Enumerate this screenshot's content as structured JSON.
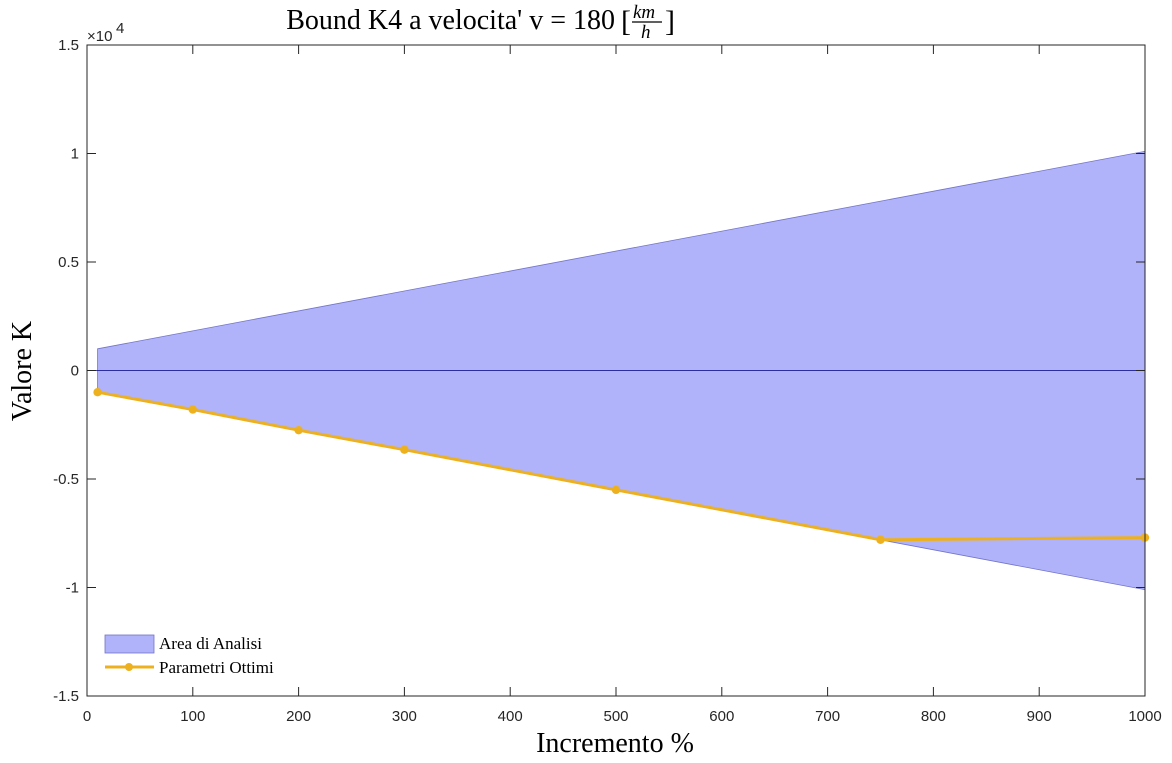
{
  "chart_data": {
    "type": "area",
    "title": "Bound K4 a velocita' v = 180 ",
    "title_unit_num": "km",
    "title_unit_den": "h",
    "xlabel": "Incremento %",
    "ylabel": "Valore K",
    "xlim": [
      0,
      1000
    ],
    "ylim": [
      -15000,
      15000
    ],
    "x_ticks": [
      0,
      100,
      200,
      300,
      400,
      500,
      600,
      700,
      800,
      900,
      1000
    ],
    "y_ticks": [
      -15000,
      -10000,
      -5000,
      0,
      5000,
      10000,
      15000
    ],
    "y_tick_labels": [
      "-1.5",
      "-1",
      "-0.5",
      "0",
      "0.5",
      "1",
      "1.5"
    ],
    "y_exponent_label": "×10",
    "y_exponent_power": "4",
    "grid": false,
    "zero_line": true,
    "legend_position": "bottom-left",
    "series": [
      {
        "name": "Area di Analisi",
        "kind": "area",
        "color": "#b0b2fa",
        "edge_color": "#7274c8",
        "x": [
          10,
          1000
        ],
        "upper": [
          1000,
          10100
        ],
        "lower": [
          -1000,
          -10100
        ]
      },
      {
        "name": "Parametri Ottimi",
        "kind": "line",
        "color": "#edb120",
        "x": [
          10,
          100,
          200,
          300,
          500,
          750,
          1000
        ],
        "y": [
          -1000,
          -1800,
          -2750,
          -3650,
          -5500,
          -7800,
          -7700
        ]
      }
    ]
  }
}
